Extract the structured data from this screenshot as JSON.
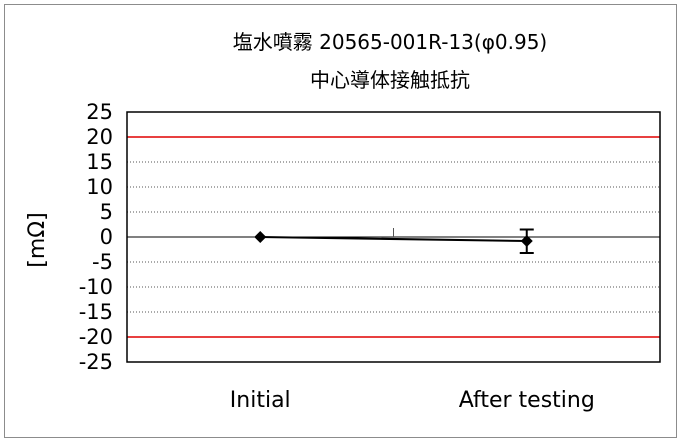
{
  "chart_data": {
    "type": "line",
    "title": "塩水噴霧 20565-001R-13(φ0.95)",
    "subtitle": "中心導体接触抵抗",
    "ylabel": "[mΩ]",
    "xlabel": "",
    "ylim": [
      -25,
      25
    ],
    "yticks": [
      25,
      20,
      15,
      10,
      5,
      0,
      -5,
      -10,
      -15,
      -20,
      -25
    ],
    "ytick_labels": [
      "25",
      "20",
      "15",
      "10",
      "5",
      "0",
      "-5",
      "-10",
      "-15",
      "-20",
      "-25"
    ],
    "categories": [
      "Initial",
      "After testing"
    ],
    "series": [
      {
        "values": [
          0,
          -0.8
        ],
        "error_low": [
          0,
          -3.2
        ],
        "error_high": [
          0,
          1.5
        ],
        "marker": "diamond",
        "color": "#000000"
      }
    ],
    "limit_lines": [
      20,
      -20
    ],
    "limit_color": "#e00000",
    "grid": "horizontal-dotted"
  }
}
